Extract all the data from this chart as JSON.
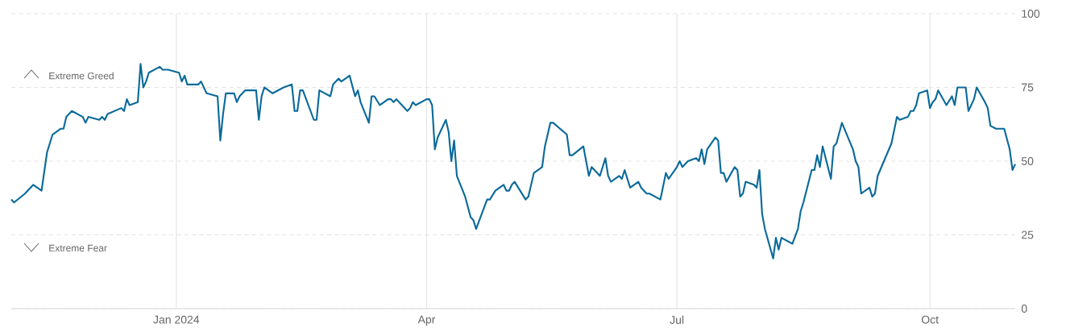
{
  "chart_data": {
    "type": "line",
    "x": [
      "2023-11-02",
      "2023-11-03",
      "2023-11-07",
      "2023-11-08",
      "2023-11-10",
      "2023-11-13",
      "2023-11-15",
      "2023-11-17",
      "2023-11-20",
      "2023-11-21",
      "2023-11-22",
      "2023-11-24",
      "2023-11-28",
      "2023-11-29",
      "2023-11-30",
      "2023-12-04",
      "2023-12-05",
      "2023-12-06",
      "2023-12-07",
      "2023-12-12",
      "2023-12-13",
      "2023-12-14",
      "2023-12-15",
      "2023-12-18",
      "2023-12-19",
      "2023-12-20",
      "2023-12-21",
      "2023-12-22",
      "2023-12-26",
      "2023-12-27",
      "2023-12-28",
      "2023-12-29",
      "2024-01-02",
      "2024-01-03",
      "2024-01-04",
      "2024-01-05",
      "2024-01-08",
      "2024-01-09",
      "2024-01-10",
      "2024-01-12",
      "2024-01-16",
      "2024-01-17",
      "2024-01-18",
      "2024-01-19",
      "2024-01-22",
      "2024-01-23",
      "2024-01-24",
      "2024-01-26",
      "2024-01-30",
      "2024-01-31",
      "2024-02-01",
      "2024-02-02",
      "2024-02-05",
      "2024-02-09",
      "2024-02-12",
      "2024-02-13",
      "2024-02-14",
      "2024-02-15",
      "2024-02-16",
      "2024-02-20",
      "2024-02-21",
      "2024-02-22",
      "2024-02-26",
      "2024-02-27",
      "2024-02-29",
      "2024-03-01",
      "2024-03-04",
      "2024-03-06",
      "2024-03-07",
      "2024-03-08",
      "2024-03-11",
      "2024-03-12",
      "2024-03-13",
      "2024-03-15",
      "2024-03-18",
      "2024-03-19",
      "2024-03-20",
      "2024-03-21",
      "2024-03-22",
      "2024-03-25",
      "2024-03-26",
      "2024-03-27",
      "2024-03-28",
      "2024-04-01",
      "2024-04-02",
      "2024-04-03",
      "2024-04-04",
      "2024-04-05",
      "2024-04-08",
      "2024-04-09",
      "2024-04-10",
      "2024-04-11",
      "2024-04-12",
      "2024-04-15",
      "2024-04-17",
      "2024-04-18",
      "2024-04-19",
      "2024-04-23",
      "2024-04-24",
      "2024-04-26",
      "2024-04-29",
      "2024-04-30",
      "2024-05-01",
      "2024-05-02",
      "2024-05-03",
      "2024-05-07",
      "2024-05-08",
      "2024-05-10",
      "2024-05-13",
      "2024-05-14",
      "2024-05-16",
      "2024-05-17",
      "2024-05-22",
      "2024-05-23",
      "2024-05-24",
      "2024-05-28",
      "2024-05-30",
      "2024-05-31",
      "2024-06-03",
      "2024-06-05",
      "2024-06-06",
      "2024-06-07",
      "2024-06-10",
      "2024-06-11",
      "2024-06-12",
      "2024-06-14",
      "2024-06-17",
      "2024-06-18",
      "2024-06-20",
      "2024-06-21",
      "2024-06-25",
      "2024-06-27",
      "2024-06-28",
      "2024-07-01",
      "2024-07-02",
      "2024-07-03",
      "2024-07-05",
      "2024-07-08",
      "2024-07-09",
      "2024-07-10",
      "2024-07-11",
      "2024-07-12",
      "2024-07-15",
      "2024-07-16",
      "2024-07-17",
      "2024-07-18",
      "2024-07-19",
      "2024-07-22",
      "2024-07-23",
      "2024-07-24",
      "2024-07-25",
      "2024-07-26",
      "2024-07-29",
      "2024-07-30",
      "2024-07-31",
      "2024-08-01",
      "2024-08-02",
      "2024-08-05",
      "2024-08-06",
      "2024-08-07",
      "2024-08-08",
      "2024-08-12",
      "2024-08-14",
      "2024-08-15",
      "2024-08-16",
      "2024-08-19",
      "2024-08-20",
      "2024-08-21",
      "2024-08-22",
      "2024-08-23",
      "2024-08-26",
      "2024-08-27",
      "2024-08-28",
      "2024-08-30",
      "2024-09-03",
      "2024-09-04",
      "2024-09-05",
      "2024-09-06",
      "2024-09-09",
      "2024-09-10",
      "2024-09-11",
      "2024-09-12",
      "2024-09-17",
      "2024-09-19",
      "2024-09-20",
      "2024-09-23",
      "2024-09-24",
      "2024-09-25",
      "2024-09-26",
      "2024-09-27",
      "2024-09-30",
      "2024-10-01",
      "2024-10-02",
      "2024-10-03",
      "2024-10-04",
      "2024-10-07",
      "2024-10-09",
      "2024-10-10",
      "2024-10-11",
      "2024-10-14",
      "2024-10-15",
      "2024-10-16",
      "2024-10-17",
      "2024-10-18",
      "2024-10-21",
      "2024-10-22",
      "2024-10-23",
      "2024-10-25",
      "2024-10-28",
      "2024-10-30",
      "2024-10-31",
      "2024-11-01"
    ],
    "values": [
      37,
      36,
      39,
      40,
      42,
      40,
      53,
      59,
      61,
      61,
      65,
      67,
      65,
      63,
      65,
      64,
      65,
      64,
      66,
      68,
      67,
      71,
      69,
      70,
      83,
      75,
      77,
      80,
      82,
      81,
      81,
      81,
      80,
      77,
      79,
      76,
      76,
      76,
      77,
      73,
      72,
      57,
      66,
      73,
      73,
      70,
      72,
      74,
      74,
      64,
      72,
      75,
      73,
      75,
      76,
      67,
      67,
      74,
      74,
      64,
      64,
      74,
      72,
      76,
      78,
      77,
      79,
      72,
      74,
      70,
      63,
      72,
      72,
      69,
      71,
      71,
      70,
      71,
      70,
      67,
      68,
      70,
      69,
      71,
      71,
      69,
      54,
      58,
      64,
      60,
      50,
      57,
      45,
      38,
      31,
      30,
      27,
      37,
      37,
      40,
      42,
      40,
      40,
      42,
      43,
      37,
      38,
      46,
      48,
      55,
      63,
      63,
      59,
      52,
      52,
      55,
      45,
      48,
      45,
      51,
      45,
      43,
      45,
      44,
      47,
      41,
      43,
      41,
      39,
      39,
      37,
      46,
      44,
      48,
      50,
      48,
      50,
      51,
      50,
      54,
      49,
      54,
      58,
      57,
      46,
      46,
      43,
      48,
      47,
      38,
      39,
      43,
      42,
      41,
      47,
      32,
      27,
      17,
      24,
      20,
      24,
      22,
      27,
      33,
      36,
      47,
      47,
      52,
      48,
      55,
      44,
      55,
      56,
      63,
      54,
      50,
      48,
      39,
      41,
      38,
      39,
      45,
      56,
      65,
      64,
      65,
      67,
      67,
      69,
      73,
      74,
      68,
      70,
      71,
      74,
      69,
      72,
      69,
      75,
      75,
      67,
      69,
      71,
      75,
      70,
      68,
      62,
      61,
      61,
      54,
      47,
      49
    ],
    "color": "#0b6a9a",
    "xlim": [
      "2023-11-02",
      "2024-11-01"
    ],
    "xticks": [
      {
        "value": "2024-01-01",
        "label": "Jan 2024"
      },
      {
        "value": "2024-04-01",
        "label": "Apr"
      },
      {
        "value": "2024-07-01",
        "label": "Jul"
      },
      {
        "value": "2024-10-01",
        "label": "Oct"
      }
    ],
    "ylim": [
      0,
      100
    ],
    "yticks": [
      0,
      25,
      50,
      75,
      100
    ],
    "grid": true,
    "annotations": [
      "Extreme Greed",
      "Extreme Fear"
    ]
  }
}
